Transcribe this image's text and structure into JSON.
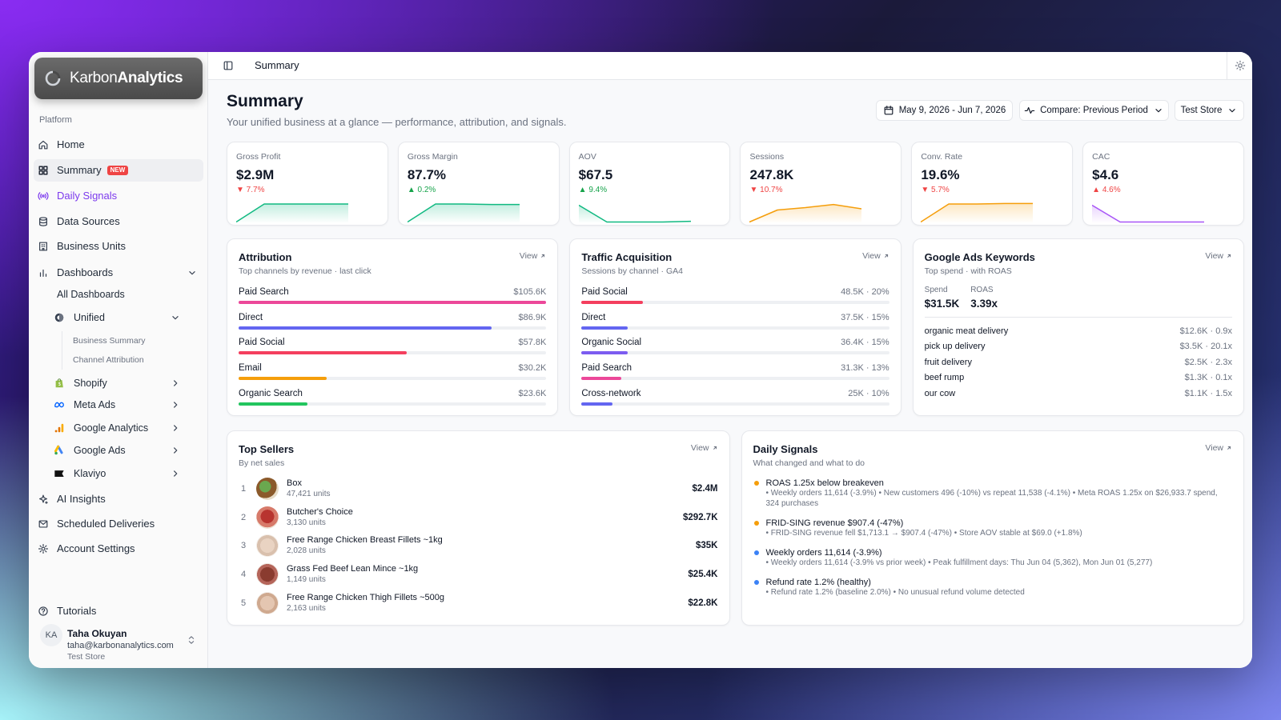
{
  "sidebar": {
    "brand_light": "Karbon",
    "brand_bold": "Analytics",
    "section": "Platform",
    "top_nav": [
      {
        "label": "Home"
      },
      {
        "label": "Summary",
        "badge": "NEW"
      },
      {
        "label": "Daily Signals"
      },
      {
        "label": "Data Sources"
      },
      {
        "label": "Business Units"
      },
      {
        "label": "Dashboards"
      }
    ],
    "dashboards": {
      "all": "All Dashboards",
      "unified": "Unified",
      "unified_children": [
        "Business Summary",
        "Channel Attribution"
      ],
      "integrations": [
        "Shopify",
        "Meta Ads",
        "Google Analytics",
        "Google Ads",
        "Klaviyo"
      ]
    },
    "bottom_nav": [
      "AI Insights",
      "Scheduled Deliveries",
      "Account Settings"
    ],
    "tutorials": "Tutorials",
    "user": {
      "initials": "KA",
      "name": "Taha Okuyan",
      "email": "taha@karbonanalytics.com",
      "store": "Test Store"
    }
  },
  "header": {
    "breadcrumb": "Summary"
  },
  "page": {
    "title": "Summary",
    "subtitle": "Your unified business at a glance — performance, attribution, and signals.",
    "date_range": "May 9, 2026 - Jun 7, 2026",
    "compare": "Compare: Previous Period",
    "store": "Test Store"
  },
  "spark_ylim": [
    0,
    100
  ],
  "kpis": [
    {
      "label": "Gross Profit",
      "value": "$2.9M",
      "change": "▼ 7.7%",
      "change_color": "#ef4444",
      "spark_color": "#10b981",
      "spark": [
        5,
        80,
        80,
        80,
        80
      ]
    },
    {
      "label": "Gross Margin",
      "value": "87.7%",
      "change": "▲ 0.2%",
      "change_color": "#16a34a",
      "spark_color": "#10b981",
      "spark": [
        5,
        80,
        80,
        78,
        78
      ]
    },
    {
      "label": "AOV",
      "value": "$67.5",
      "change": "▲ 9.4%",
      "change_color": "#16a34a",
      "spark_color": "#10b981",
      "spark": [
        75,
        5,
        5,
        5,
        8
      ]
    },
    {
      "label": "Sessions",
      "value": "247.8K",
      "change": "▼ 10.7%",
      "change_color": "#ef4444",
      "spark_color": "#f59e0b",
      "spark": [
        5,
        55,
        65,
        78,
        60
      ]
    },
    {
      "label": "Conv. Rate",
      "value": "19.6%",
      "change": "▼ 5.7%",
      "change_color": "#ef4444",
      "spark_color": "#f59e0b",
      "spark": [
        5,
        80,
        80,
        82,
        82
      ]
    },
    {
      "label": "CAC",
      "value": "$4.6",
      "change": "▲ 4.6%",
      "change_color": "#ef4444",
      "spark_color": "#a855f7",
      "spark": [
        75,
        5,
        5,
        5,
        5
      ]
    }
  ],
  "attribution": {
    "title": "Attribution",
    "subtitle": "Top channels by revenue · last click",
    "link": "View",
    "rows": [
      {
        "channel": "Paid Search",
        "value": 105.6,
        "label": "$105.6K",
        "color": "#ec4899"
      },
      {
        "channel": "Direct",
        "value": 86.9,
        "label": "$86.9K",
        "color": "#6366f1"
      },
      {
        "channel": "Paid Social",
        "value": 57.8,
        "label": "$57.8K",
        "color": "#f43f5e"
      },
      {
        "channel": "Email",
        "value": 30.2,
        "label": "$30.2K",
        "color": "#f59e0b"
      },
      {
        "channel": "Organic Search",
        "value": 23.6,
        "label": "$23.6K",
        "color": "#22c55e"
      }
    ]
  },
  "traffic": {
    "title": "Traffic Acquisition",
    "subtitle": "Sessions by channel · GA4",
    "link": "View",
    "bar_xlim": [
      0,
      100
    ],
    "rows": [
      {
        "channel": "Paid Social",
        "share": 20,
        "label": "48.5K · 20%",
        "color": "#f43f5e"
      },
      {
        "channel": "Direct",
        "share": 15,
        "label": "37.5K · 15%",
        "color": "#6366f1"
      },
      {
        "channel": "Organic Social",
        "share": 15,
        "label": "36.4K · 15%",
        "color": "#7c5cf0"
      },
      {
        "channel": "Paid Search",
        "share": 13,
        "label": "31.3K · 13%",
        "color": "#ec4899"
      },
      {
        "channel": "Cross-network",
        "share": 10,
        "label": "25K · 10%",
        "color": "#6366f1"
      }
    ]
  },
  "keywords": {
    "title": "Google Ads Keywords",
    "subtitle": "Top spend · with ROAS",
    "link": "View",
    "spend_label": "Spend",
    "spend": "$31.5K",
    "roas_label": "ROAS",
    "roas": "3.39x",
    "rows": [
      {
        "keyword": "organic meat delivery",
        "label": "$12.6K · 0.9x"
      },
      {
        "keyword": "pick up delivery",
        "label": "$3.5K · 20.1x"
      },
      {
        "keyword": "fruit delivery",
        "label": "$2.5K · 2.3x"
      },
      {
        "keyword": "beef rump",
        "label": "$1.3K · 0.1x"
      },
      {
        "keyword": "our cow",
        "label": "$1.1K · 1.5x"
      }
    ]
  },
  "top_sellers": {
    "title": "Top Sellers",
    "subtitle": "By net sales",
    "link": "View",
    "rows": [
      {
        "rank": 1,
        "name": "Box",
        "units": "47,421 units",
        "sales": "$2.4M"
      },
      {
        "rank": 2,
        "name": "Butcher's Choice",
        "units": "3,130 units",
        "sales": "$292.7K"
      },
      {
        "rank": 3,
        "name": "Free Range Chicken Breast Fillets ~1kg",
        "units": "2,028 units",
        "sales": "$35K"
      },
      {
        "rank": 4,
        "name": "Grass Fed Beef Lean Mince ~1kg",
        "units": "1,149 units",
        "sales": "$25.4K"
      },
      {
        "rank": 5,
        "name": "Free Range Chicken Thigh Fillets ~500g",
        "units": "2,163 units",
        "sales": "$22.8K"
      }
    ]
  },
  "daily_signals": {
    "title": "Daily Signals",
    "subtitle": "What changed and what to do",
    "link": "View",
    "items": [
      {
        "color": "#f59e0b",
        "title": "ROAS 1.25x below breakeven",
        "detail": "• Weekly orders 11,614 (-3.9%) • New customers 496 (-10%) vs repeat 11,538 (-4.1%) • Meta ROAS 1.25x on $26,933.7 spend, 324 purchases"
      },
      {
        "color": "#f59e0b",
        "title": "FRID-SING revenue $907.4 (-47%)",
        "detail": "• FRID-SING revenue fell $1,713.1 → $907.4 (-47%) • Store AOV stable at $69.0 (+1.8%)"
      },
      {
        "color": "#3b82f6",
        "title": "Weekly orders 11,614 (-3.9%)",
        "detail": "• Weekly orders 11,614 (-3.9% vs prior week) • Peak fulfillment days: Thu Jun 04 (5,362), Mon Jun 01 (5,277)"
      },
      {
        "color": "#3b82f6",
        "title": "Refund rate 1.2% (healthy)",
        "detail": "• Refund rate 1.2% (baseline 2.0%) • No unusual refund volume detected"
      }
    ]
  }
}
